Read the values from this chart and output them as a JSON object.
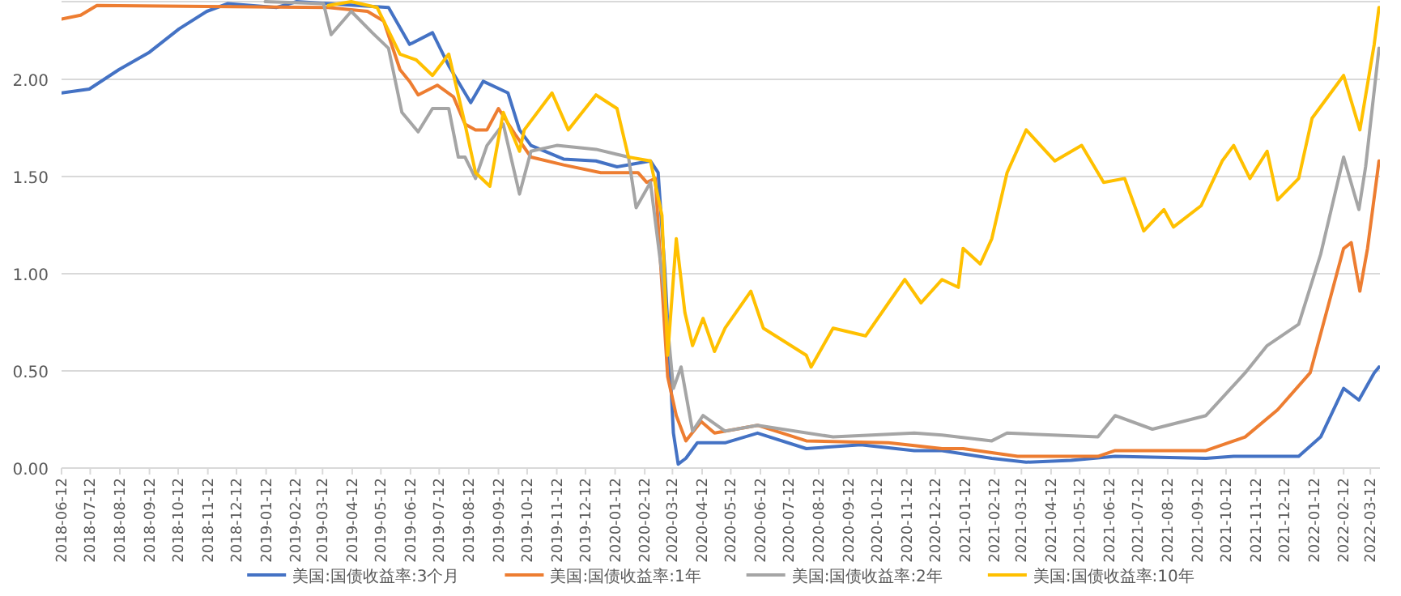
{
  "chart_data": {
    "type": "line",
    "legend": "bottom",
    "grid": "y",
    "line_style": "solid",
    "xlim": [
      "2018-06-12",
      "2022-03-22"
    ],
    "ylim": [
      0,
      2.4
    ],
    "yticks": [
      {
        "value": 0,
        "label": "0.00"
      },
      {
        "value": 0.5,
        "label": "0.50"
      },
      {
        "value": 1,
        "label": "1.00"
      },
      {
        "value": 1.5,
        "label": "1.50"
      },
      {
        "value": 2,
        "label": "2.00"
      }
    ],
    "xticks": [
      "2018-06-12",
      "2018-07-12",
      "2018-08-12",
      "2018-09-12",
      "2018-10-12",
      "2018-11-12",
      "2018-12-12",
      "2019-01-12",
      "2019-02-12",
      "2019-03-12",
      "2019-04-12",
      "2019-05-12",
      "2019-06-12",
      "2019-07-12",
      "2019-08-12",
      "2019-09-12",
      "2019-10-12",
      "2019-11-12",
      "2019-12-12",
      "2020-01-12",
      "2020-02-12",
      "2020-03-12",
      "2020-04-12",
      "2020-05-12",
      "2020-06-12",
      "2020-07-12",
      "2020-08-12",
      "2020-09-12",
      "2020-10-12",
      "2020-11-12",
      "2020-12-12",
      "2021-01-12",
      "2021-02-12",
      "2021-03-12",
      "2021-04-12",
      "2021-05-12",
      "2021-06-12",
      "2021-07-12",
      "2021-08-12",
      "2021-09-12",
      "2021-10-12",
      "2021-11-12",
      "2021-12-12",
      "2022-01-12",
      "2022-02-12",
      "2022-03-12"
    ],
    "series": [
      {
        "name": "美国:国债收益率:3个月",
        "color": "#4472c4",
        "x": [
          "2018-06-12",
          "2018-07-11",
          "2018-08-11",
          "2018-09-12",
          "2018-10-13",
          "2018-11-11",
          "2018-12-03",
          "2019-01-23",
          "2019-02-13",
          "2019-05-20",
          "2019-06-11",
          "2019-07-05",
          "2019-07-22",
          "2019-08-14",
          "2019-08-27",
          "2019-09-22",
          "2019-10-04",
          "2019-10-16",
          "2019-11-19",
          "2019-12-23",
          "2020-01-14",
          "2020-02-18",
          "2020-02-26",
          "2020-03-04",
          "2020-03-13",
          "2020-03-18",
          "2020-03-26",
          "2020-04-07",
          "2020-05-06",
          "2020-06-09",
          "2020-07-30",
          "2020-09-25",
          "2020-11-20",
          "2020-12-19",
          "2021-02-09",
          "2021-03-17",
          "2021-05-03",
          "2021-06-18",
          "2021-09-21",
          "2021-10-20",
          "2021-12-27",
          "2022-01-19",
          "2022-02-12",
          "2022-02-28",
          "2022-03-16",
          "2022-03-21"
        ],
        "values": [
          1.93,
          1.95,
          2.05,
          2.14,
          2.26,
          2.35,
          2.39,
          2.37,
          2.4,
          2.37,
          2.18,
          2.24,
          2.07,
          1.88,
          1.99,
          1.93,
          1.74,
          1.66,
          1.59,
          1.58,
          1.55,
          1.58,
          1.52,
          1.02,
          0.18,
          0.02,
          0.05,
          0.13,
          0.13,
          0.18,
          0.1,
          0.12,
          0.09,
          0.09,
          0.05,
          0.03,
          0.04,
          0.06,
          0.05,
          0.06,
          0.06,
          0.16,
          0.41,
          0.35,
          0.49,
          0.52
        ]
      },
      {
        "name": "美国:国债收益率:1年",
        "color": "#ed7d31",
        "x": [
          "2018-06-12",
          "2018-07-02",
          "2018-07-19",
          "2019-03-18",
          "2019-04-28",
          "2019-05-15",
          "2019-06-01",
          "2019-06-11",
          "2019-06-20",
          "2019-07-10",
          "2019-07-27",
          "2019-08-08",
          "2019-08-19",
          "2019-08-31",
          "2019-09-12",
          "2019-09-29",
          "2019-10-16",
          "2019-11-19",
          "2019-12-28",
          "2020-02-05",
          "2020-02-14",
          "2020-02-23",
          "2020-03-07",
          "2020-03-16",
          "2020-03-26",
          "2020-04-11",
          "2020-04-25",
          "2020-06-09",
          "2020-07-30",
          "2020-10-24",
          "2020-12-19",
          "2021-01-10",
          "2021-03-08",
          "2021-05-31",
          "2021-06-18",
          "2021-09-21",
          "2021-11-01",
          "2021-12-05",
          "2022-01-08",
          "2022-02-12",
          "2022-02-20",
          "2022-03-01",
          "2022-03-09",
          "2022-03-21"
        ],
        "values": [
          2.31,
          2.33,
          2.38,
          2.37,
          2.35,
          2.3,
          2.05,
          1.99,
          1.92,
          1.97,
          1.91,
          1.77,
          1.74,
          1.74,
          1.85,
          1.72,
          1.6,
          1.56,
          1.52,
          1.52,
          1.47,
          1.49,
          0.47,
          0.27,
          0.14,
          0.24,
          0.18,
          0.22,
          0.14,
          0.13,
          0.1,
          0.1,
          0.06,
          0.06,
          0.09,
          0.09,
          0.16,
          0.3,
          0.49,
          1.13,
          1.16,
          0.91,
          1.13,
          1.58
        ]
      },
      {
        "name": "美国:国债收益率:2年",
        "color": "#a5a5a5",
        "x": [
          "2019-01-11",
          "2019-03-13",
          "2019-03-21",
          "2019-04-11",
          "2019-05-03",
          "2019-05-20",
          "2019-06-03",
          "2019-06-20",
          "2019-07-05",
          "2019-07-22",
          "2019-08-01",
          "2019-08-08",
          "2019-08-19",
          "2019-08-31",
          "2019-09-17",
          "2019-10-04",
          "2019-10-16",
          "2019-11-12",
          "2019-12-23",
          "2020-01-26",
          "2020-02-03",
          "2020-02-18",
          "2020-03-04",
          "2020-03-13",
          "2020-03-21",
          "2020-04-02",
          "2020-04-13",
          "2020-05-06",
          "2020-06-09",
          "2020-08-27",
          "2020-11-20",
          "2020-12-19",
          "2021-02-09",
          "2021-02-25",
          "2021-05-31",
          "2021-06-18",
          "2021-07-27",
          "2021-09-21",
          "2021-11-01",
          "2021-11-24",
          "2021-12-27",
          "2022-01-19",
          "2022-02-12",
          "2022-02-28",
          "2022-03-07",
          "2022-03-21"
        ],
        "values": [
          2.4,
          2.39,
          2.23,
          2.35,
          2.24,
          2.16,
          1.83,
          1.73,
          1.85,
          1.85,
          1.6,
          1.6,
          1.49,
          1.66,
          1.77,
          1.41,
          1.63,
          1.66,
          1.64,
          1.6,
          1.34,
          1.47,
          0.88,
          0.41,
          0.52,
          0.19,
          0.27,
          0.19,
          0.22,
          0.16,
          0.18,
          0.17,
          0.14,
          0.18,
          0.16,
          0.27,
          0.2,
          0.27,
          0.49,
          0.63,
          0.74,
          1.1,
          1.6,
          1.33,
          1.55,
          2.16
        ]
      },
      {
        "name": "美国:国债收益率:10年",
        "color": "#ffc000",
        "x": [
          "2019-03-18",
          "2019-04-11",
          "2019-05-08",
          "2019-06-01",
          "2019-06-18",
          "2019-07-05",
          "2019-07-22",
          "2019-08-08",
          "2019-08-19",
          "2019-09-03",
          "2019-09-17",
          "2019-10-04",
          "2019-10-09",
          "2019-11-07",
          "2019-11-24",
          "2019-12-23",
          "2020-01-14",
          "2020-01-26",
          "2020-02-18",
          "2020-03-01",
          "2020-03-07",
          "2020-03-16",
          "2020-03-25",
          "2020-04-02",
          "2020-04-13",
          "2020-04-25",
          "2020-05-06",
          "2020-06-02",
          "2020-06-15",
          "2020-07-30",
          "2020-08-04",
          "2020-08-27",
          "2020-09-30",
          "2020-10-24",
          "2020-11-10",
          "2020-11-27",
          "2020-12-19",
          "2021-01-05",
          "2021-01-10",
          "2021-01-28",
          "2021-02-09",
          "2021-02-25",
          "2021-03-17",
          "2021-04-16",
          "2021-05-14",
          "2021-06-06",
          "2021-06-28",
          "2021-07-18",
          "2021-08-08",
          "2021-08-18",
          "2021-09-16",
          "2021-10-08",
          "2021-10-20",
          "2021-11-06",
          "2021-11-24",
          "2021-12-05",
          "2021-12-27",
          "2022-01-10",
          "2022-02-12",
          "2022-03-01",
          "2022-03-16",
          "2022-03-21"
        ],
        "values": [
          2.38,
          2.4,
          2.37,
          2.13,
          2.1,
          2.02,
          2.13,
          1.77,
          1.52,
          1.45,
          1.83,
          1.63,
          1.74,
          1.93,
          1.74,
          1.92,
          1.85,
          1.6,
          1.58,
          1.3,
          0.58,
          1.18,
          0.8,
          0.63,
          0.77,
          0.6,
          0.72,
          0.91,
          0.72,
          0.58,
          0.52,
          0.72,
          0.68,
          0.85,
          0.97,
          0.85,
          0.97,
          0.93,
          1.13,
          1.05,
          1.18,
          1.52,
          1.74,
          1.58,
          1.66,
          1.47,
          1.49,
          1.22,
          1.33,
          1.24,
          1.35,
          1.58,
          1.66,
          1.49,
          1.63,
          1.38,
          1.49,
          1.8,
          2.02,
          1.74,
          2.18,
          2.37
        ]
      }
    ]
  }
}
